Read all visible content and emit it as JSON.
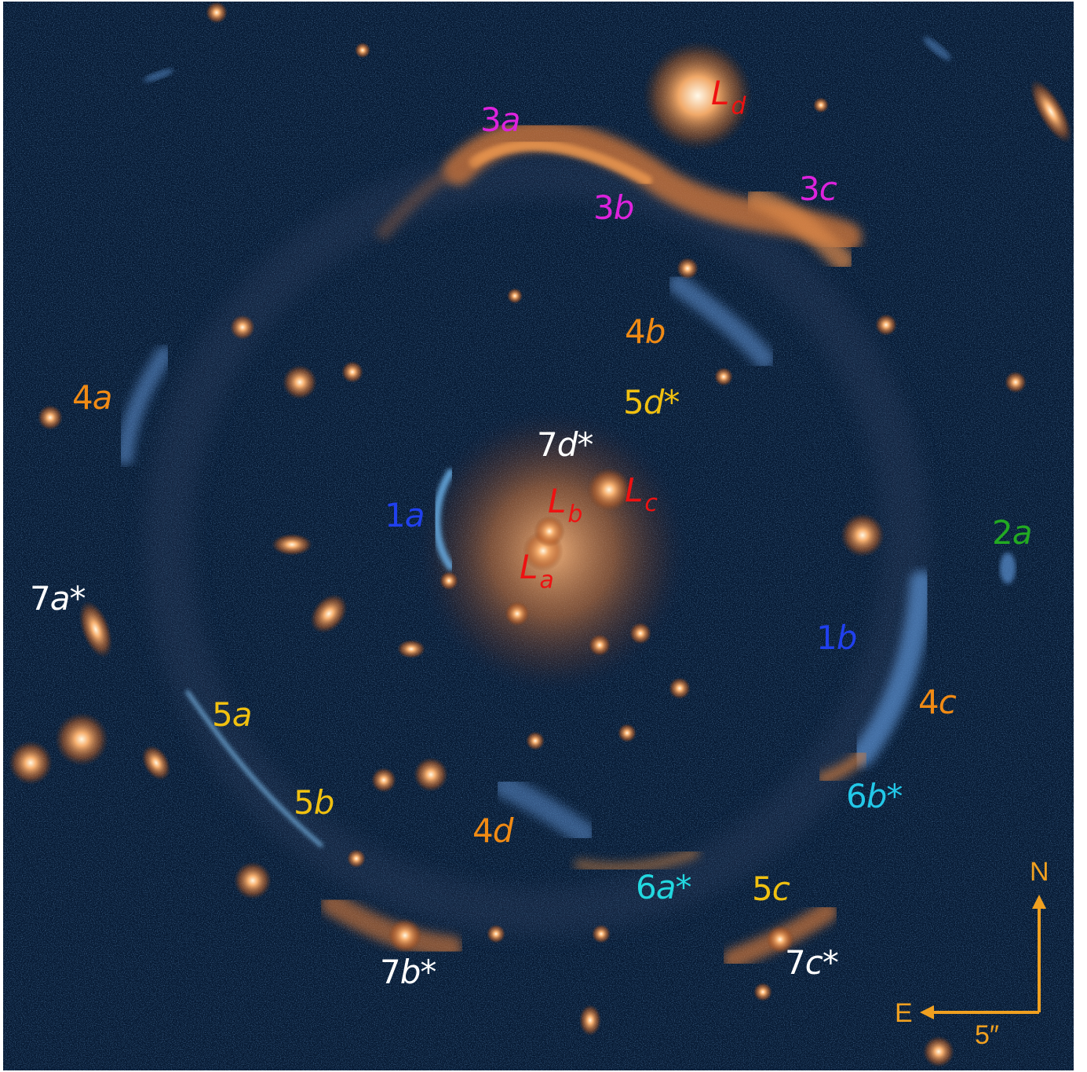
{
  "image": {
    "subject": "galaxy-scale strong gravitational lens with multiply imaged sources"
  },
  "colors": {
    "background": "#071a33",
    "lens_light": "#f2a050",
    "arc_blue": "#5a9ad8",
    "label_red": "#ee1111",
    "label_magenta": "#dd22dd",
    "label_orange": "#f08a14",
    "label_yellow": "#f0c010",
    "label_blue": "#2040ee",
    "label_green": "#22aa22",
    "label_cyan": "#22d0e0",
    "label_white": "#ffffff",
    "compass": "#f0a020"
  },
  "lens_labels": {
    "La": {
      "main": "L",
      "sub": "a"
    },
    "Lb": {
      "main": "L",
      "sub": "b"
    },
    "Lc": {
      "main": "L",
      "sub": "c"
    },
    "Ld": {
      "main": "L",
      "sub": "d"
    }
  },
  "image_labels": {
    "1a": {
      "num": "1",
      "let": "a",
      "star": ""
    },
    "1b": {
      "num": "1",
      "let": "b",
      "star": ""
    },
    "2a": {
      "num": "2",
      "let": "a",
      "star": ""
    },
    "3a": {
      "num": "3",
      "let": "a",
      "star": ""
    },
    "3b": {
      "num": "3",
      "let": "b",
      "star": ""
    },
    "3c": {
      "num": "3",
      "let": "c",
      "star": ""
    },
    "4a": {
      "num": "4",
      "let": "a",
      "star": ""
    },
    "4b": {
      "num": "4",
      "let": "b",
      "star": ""
    },
    "4c": {
      "num": "4",
      "let": "c",
      "star": ""
    },
    "4d": {
      "num": "4",
      "let": "d",
      "star": ""
    },
    "5a": {
      "num": "5",
      "let": "a",
      "star": ""
    },
    "5b": {
      "num": "5",
      "let": "b",
      "star": ""
    },
    "5c": {
      "num": "5",
      "let": "c",
      "star": ""
    },
    "5d": {
      "num": "5",
      "let": "d",
      "star": "*"
    },
    "6a": {
      "num": "6",
      "let": "a",
      "star": "*"
    },
    "6b": {
      "num": "6",
      "let": "b",
      "star": "*"
    },
    "7a": {
      "num": "7",
      "let": "a",
      "star": "*"
    },
    "7b": {
      "num": "7",
      "let": "b",
      "star": "*"
    },
    "7c": {
      "num": "7",
      "let": "c",
      "star": "*"
    },
    "7d": {
      "num": "7",
      "let": "d",
      "star": "*"
    }
  },
  "compass": {
    "north": "N",
    "east": "E",
    "scale": "5″"
  }
}
